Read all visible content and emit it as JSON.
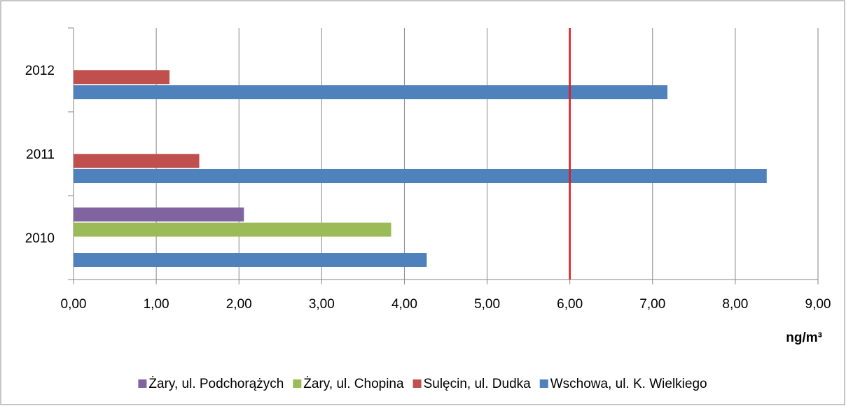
{
  "chart_data": {
    "type": "hbar",
    "categories": [
      "2010",
      "2011",
      "2012"
    ],
    "series": [
      {
        "name": "Wschowa, ul. K. Wielkiego",
        "color": "#4f81bd",
        "values": [
          4.27,
          8.38,
          7.18
        ]
      },
      {
        "name": "Sulęcin, ul. Dudka",
        "color": "#c0504d",
        "values": [
          null,
          1.52,
          1.16
        ]
      },
      {
        "name": "Żary, ul. Chopina",
        "color": "#9bbb59",
        "values": [
          3.84,
          null,
          null
        ]
      },
      {
        "name": "Żary, ul. Podchorążych",
        "color": "#8064a2",
        "values": [
          2.06,
          null,
          null
        ]
      }
    ],
    "xlabel": "ng/m³",
    "xlim": [
      0,
      9
    ],
    "xticks": [
      {
        "value": 0,
        "label": "0,00"
      },
      {
        "value": 1,
        "label": "1,00"
      },
      {
        "value": 2,
        "label": "2,00"
      },
      {
        "value": 3,
        "label": "3,00"
      },
      {
        "value": 4,
        "label": "4,00"
      },
      {
        "value": 5,
        "label": "5,00"
      },
      {
        "value": 6,
        "label": "6,00"
      },
      {
        "value": 7,
        "label": "7,00"
      },
      {
        "value": 8,
        "label": "8,00"
      },
      {
        "value": 9,
        "label": "9,00"
      }
    ],
    "reference_line": 6,
    "reference_color": "#e3161c",
    "grid": true,
    "legend": "bottom"
  }
}
